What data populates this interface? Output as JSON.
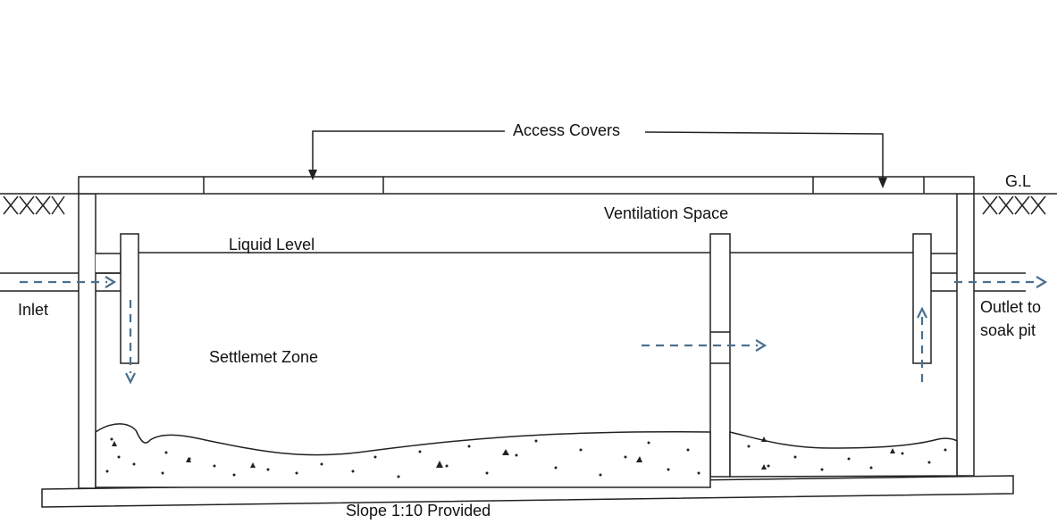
{
  "labels": {
    "access_covers": "Access Covers",
    "ground_level": "G.L",
    "ventilation_space": "Ventilation Space",
    "liquid_level": "Liquid Level",
    "inlet": "Inlet",
    "outlet_line1": "Outlet to",
    "outlet_line2": "soak pit",
    "settlement_zone": "Settlemet Zone",
    "slope": "Slope 1:10 Provided"
  },
  "colors": {
    "flow_arrow": "#4a6f8f",
    "outline": "#222222"
  }
}
